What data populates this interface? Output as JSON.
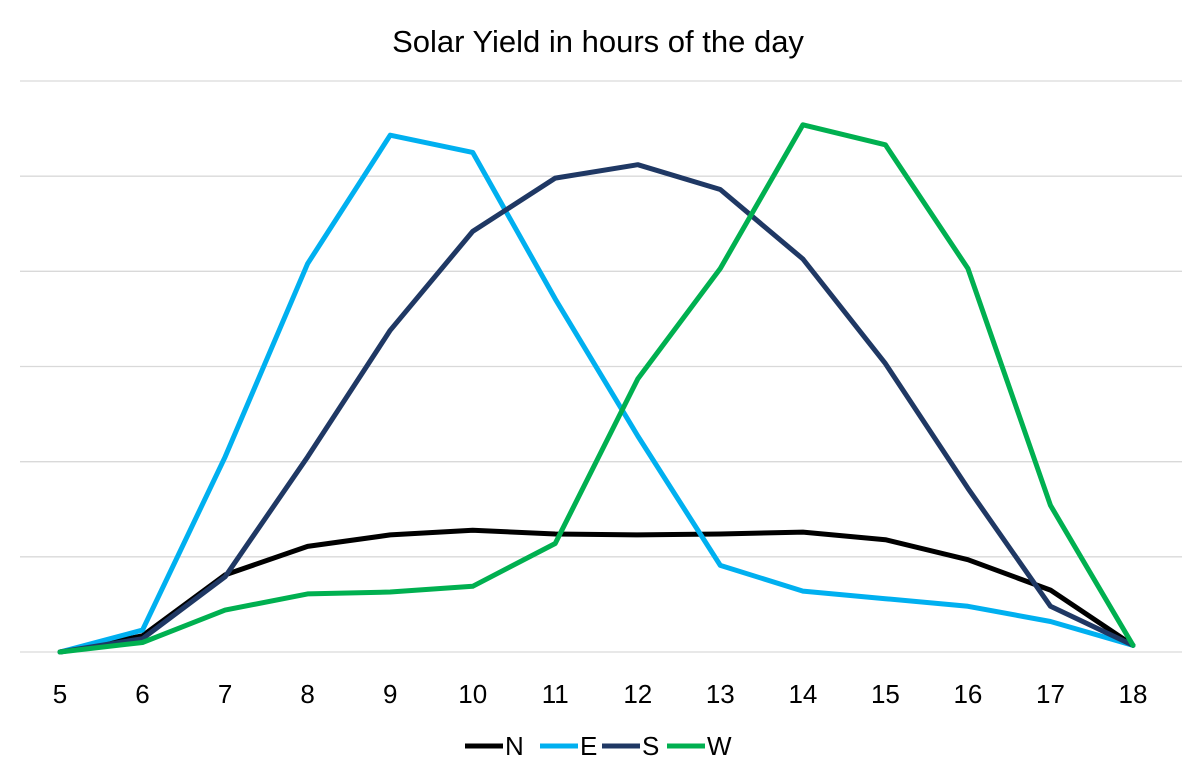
{
  "chart_data": {
    "type": "line",
    "title": "Solar Yield in hours of the day",
    "xlabel": "",
    "ylabel": "",
    "x": [
      5,
      6,
      7,
      8,
      9,
      10,
      11,
      12,
      13,
      14,
      15,
      16,
      17,
      18
    ],
    "x_tick_labels": [
      "5",
      "6",
      "7",
      "8",
      "9",
      "10",
      "11",
      "12",
      "13",
      "14",
      "15",
      "16",
      "17",
      "18"
    ],
    "ylim": [
      0,
      6
    ],
    "y_grid_values": [
      0,
      1,
      2,
      3,
      4,
      5,
      6
    ],
    "y_tick_labels_shown": false,
    "grid": true,
    "legend_position": "bottom",
    "series": [
      {
        "name": "N",
        "color": "#000000",
        "values": [
          0.0,
          0.17,
          0.81,
          1.11,
          1.23,
          1.28,
          1.24,
          1.23,
          1.24,
          1.26,
          1.18,
          0.97,
          0.65,
          0.07
        ]
      },
      {
        "name": "E",
        "color": "#00b0f0",
        "values": [
          0.0,
          0.23,
          2.05,
          4.08,
          5.43,
          5.25,
          3.71,
          2.27,
          0.91,
          0.64,
          0.56,
          0.48,
          0.32,
          0.07
        ]
      },
      {
        "name": "S",
        "color": "#1f3864",
        "values": [
          0.0,
          0.14,
          0.79,
          2.05,
          3.38,
          4.42,
          4.98,
          5.12,
          4.86,
          4.13,
          3.03,
          1.72,
          0.48,
          0.07
        ]
      },
      {
        "name": "W",
        "color": "#00b050",
        "values": [
          0.0,
          0.1,
          0.44,
          0.61,
          0.63,
          0.69,
          1.14,
          2.87,
          4.03,
          5.54,
          5.33,
          4.03,
          1.54,
          0.07
        ]
      }
    ]
  }
}
